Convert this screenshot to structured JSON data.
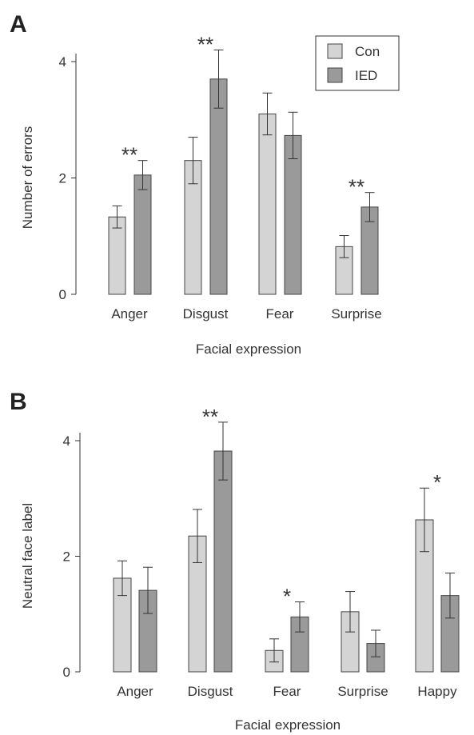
{
  "chart_data": [
    {
      "type": "bar",
      "panel": "A",
      "xlabel": "Facial expression",
      "ylabel": "Number of errors",
      "ylim": [
        0,
        4
      ],
      "yticks": [
        "0",
        "2",
        "4"
      ],
      "categories": [
        "Anger",
        "Disgust",
        "Fear",
        "Surprise"
      ],
      "series": [
        {
          "name": "Con",
          "color": "#d4d4d4",
          "values": [
            1.33,
            2.3,
            3.1,
            0.82
          ],
          "errors": [
            0.19,
            0.4,
            0.36,
            0.19
          ]
        },
        {
          "name": "IED",
          "color": "#9a9a9a",
          "values": [
            2.05,
            3.7,
            2.73,
            1.5
          ],
          "errors": [
            0.25,
            0.5,
            0.4,
            0.25
          ]
        }
      ],
      "significance": [
        "**",
        "**",
        "",
        "**"
      ],
      "legend": {
        "position": "top-right",
        "items": [
          "Con",
          "IED"
        ]
      }
    },
    {
      "type": "bar",
      "panel": "B",
      "xlabel": "Facial expression",
      "ylabel": "Neutral face label",
      "ylim": [
        0,
        4
      ],
      "yticks": [
        "0",
        "2",
        "4"
      ],
      "categories": [
        "Anger",
        "Disgust",
        "Fear",
        "Surprise",
        "Happy"
      ],
      "series": [
        {
          "name": "Con",
          "color": "#d4d4d4",
          "values": [
            1.62,
            2.35,
            0.37,
            1.04,
            2.63
          ],
          "errors": [
            0.3,
            0.46,
            0.2,
            0.35,
            0.55
          ]
        },
        {
          "name": "IED",
          "color": "#9a9a9a",
          "values": [
            1.41,
            3.82,
            0.95,
            0.49,
            1.32
          ],
          "errors": [
            0.4,
            0.5,
            0.26,
            0.23,
            0.39
          ]
        }
      ],
      "significance": [
        "",
        "**",
        "*",
        "",
        "*"
      ]
    }
  ]
}
